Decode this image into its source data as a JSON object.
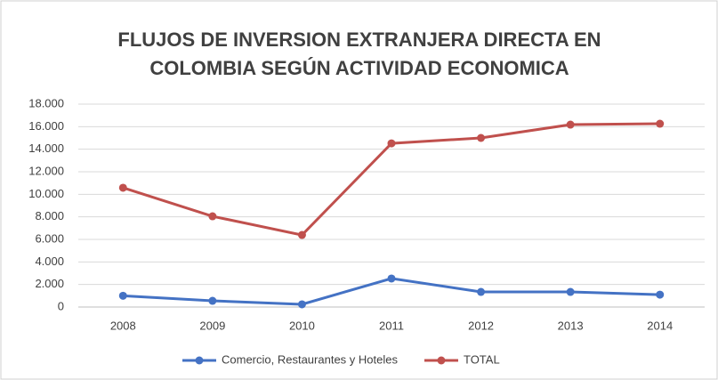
{
  "chart_data": {
    "type": "line",
    "title": [
      "FLUJOS DE INVERSION EXTRANJERA DIRECTA EN",
      "COLOMBIA SEGÚN ACTIVIDAD ECONOMICA"
    ],
    "categories": [
      "2008",
      "2009",
      "2010",
      "2011",
      "2012",
      "2013",
      "2014"
    ],
    "series": [
      {
        "name": "Comercio, Restaurantes y Hoteles",
        "color": "#4472c4",
        "values": [
          1000,
          550,
          240,
          2530,
          1340,
          1340,
          1100
        ]
      },
      {
        "name": "TOTAL",
        "color": "#c0504d",
        "values": [
          10580,
          8050,
          6390,
          14520,
          15000,
          16180,
          16260
        ]
      }
    ],
    "ylim": [
      0,
      18000
    ],
    "yticks": [
      0,
      {
        "value": 2000,
        "label": "2.000"
      },
      {
        "value": 4000,
        "label": "4.000"
      },
      {
        "value": 6000,
        "label": "6.000"
      },
      {
        "value": 8000,
        "label": "8.000"
      },
      {
        "value": 10000,
        "label": "10.000"
      },
      {
        "value": 12000,
        "label": "12.000"
      },
      {
        "value": 14000,
        "label": "14.000"
      },
      {
        "value": 16000,
        "label": "16.000"
      },
      {
        "value": 18000,
        "label": "18.000"
      }
    ],
    "grid": true,
    "legend": "bottom"
  }
}
